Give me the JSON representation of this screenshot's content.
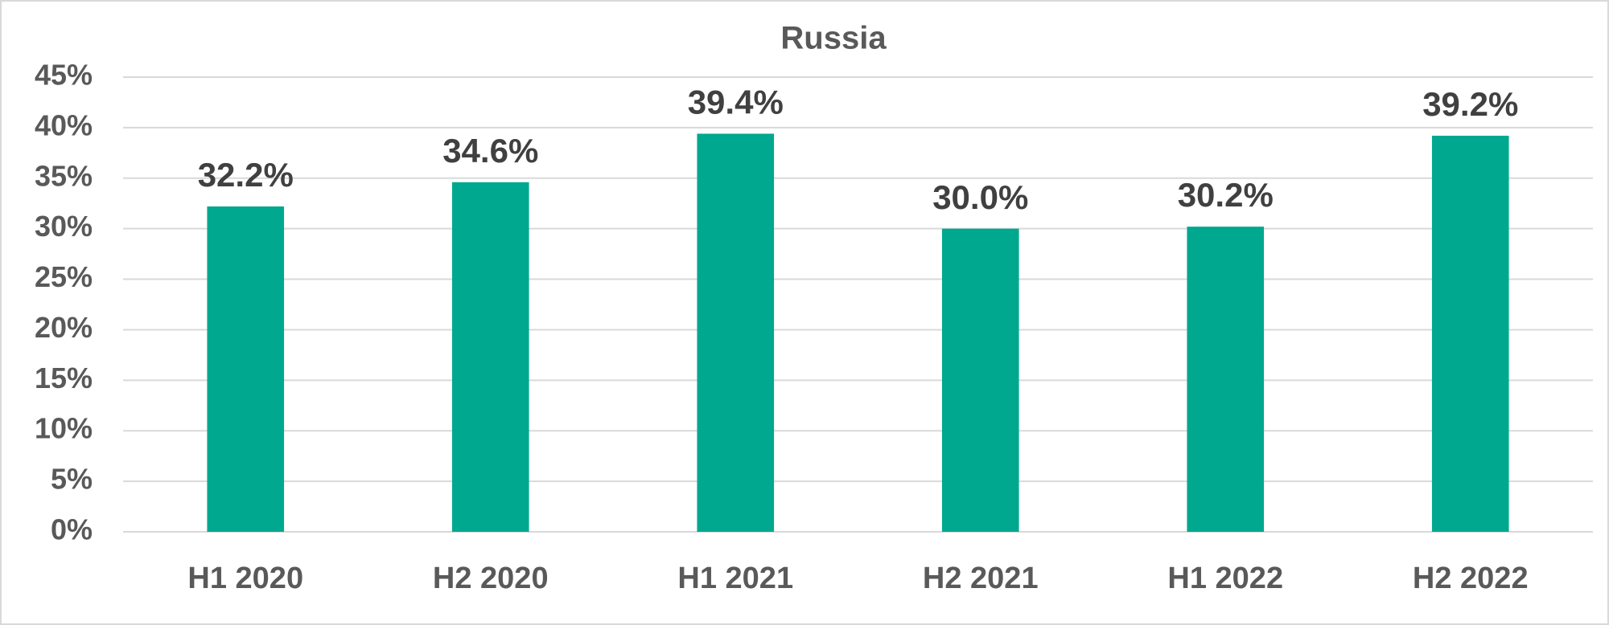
{
  "chart_data": {
    "type": "bar",
    "title": "Russia",
    "categories": [
      "H1 2020",
      "H2 2020",
      "H1 2021",
      "H2 2021",
      "H1 2022",
      "H2 2022"
    ],
    "values": [
      32.2,
      34.6,
      39.4,
      30.0,
      30.2,
      39.2
    ],
    "value_labels": [
      "32.2%",
      "34.6%",
      "39.4%",
      "30.0%",
      "30.2%",
      "39.2%"
    ],
    "color": "#00a88f",
    "ylim": [
      0,
      45
    ],
    "yticks": [
      {
        "value": 0,
        "label": "0%"
      },
      {
        "value": 5,
        "label": "5%"
      },
      {
        "value": 10,
        "label": "10%"
      },
      {
        "value": 15,
        "label": "15%"
      },
      {
        "value": 20,
        "label": "20%"
      },
      {
        "value": 25,
        "label": "25%"
      },
      {
        "value": 30,
        "label": "30%"
      },
      {
        "value": 35,
        "label": "35%"
      },
      {
        "value": 40,
        "label": "40%"
      },
      {
        "value": 45,
        "label": "45%"
      }
    ],
    "grid": true
  }
}
